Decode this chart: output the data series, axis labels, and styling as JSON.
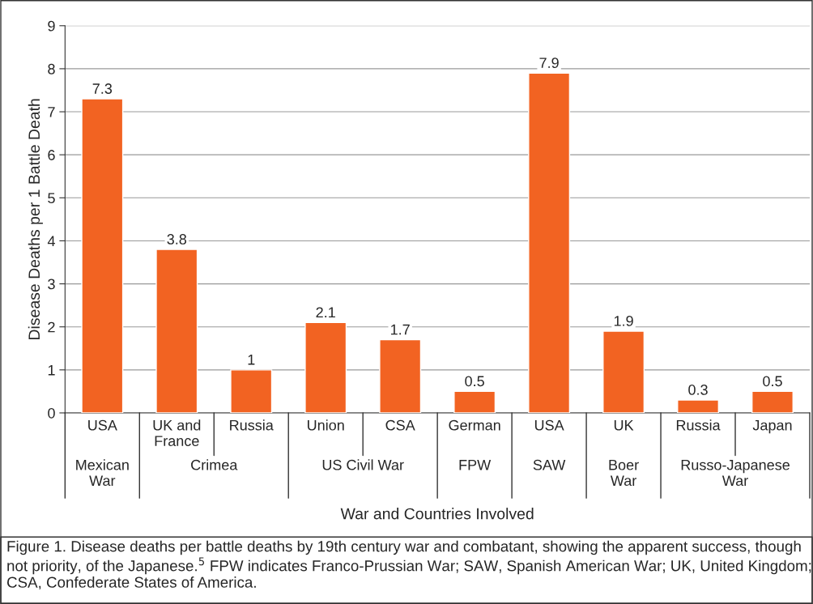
{
  "chart_data": {
    "type": "bar",
    "categories": [
      "USA",
      "UK and\nFrance",
      "Russia",
      "Union",
      "CSA",
      "German",
      "USA",
      "UK",
      "Russia",
      "Japan"
    ],
    "values": [
      7.3,
      3.8,
      1,
      2.1,
      1.7,
      0.5,
      7.9,
      1.9,
      0.3,
      0.5
    ],
    "color": "#f26322",
    "data_labels": true,
    "ylim": [
      0,
      9
    ],
    "yticks": [
      0,
      1,
      2,
      3,
      4,
      5,
      6,
      7,
      8,
      9
    ],
    "grid": "y",
    "xlabel": "War and Countries Involved",
    "ylabel": "Disease Deaths per 1 Battle Death",
    "annotations": [
      "Mexican\nWar",
      "Crimea",
      "US Civil War",
      "FPW",
      "SAW",
      "Boer\nWar",
      "Russo-Japanese\nWar",
      "Figure 1. Disease deaths per battle deaths by 19th century war and combatant, showing the apparent success, though not priority, of the Japanese.$^{5}$ FPW indicates Franco-Prussian War; SAW, Spanish American War; UK, United Kingdom; CSA, Confederate States of America."
    ]
  }
}
